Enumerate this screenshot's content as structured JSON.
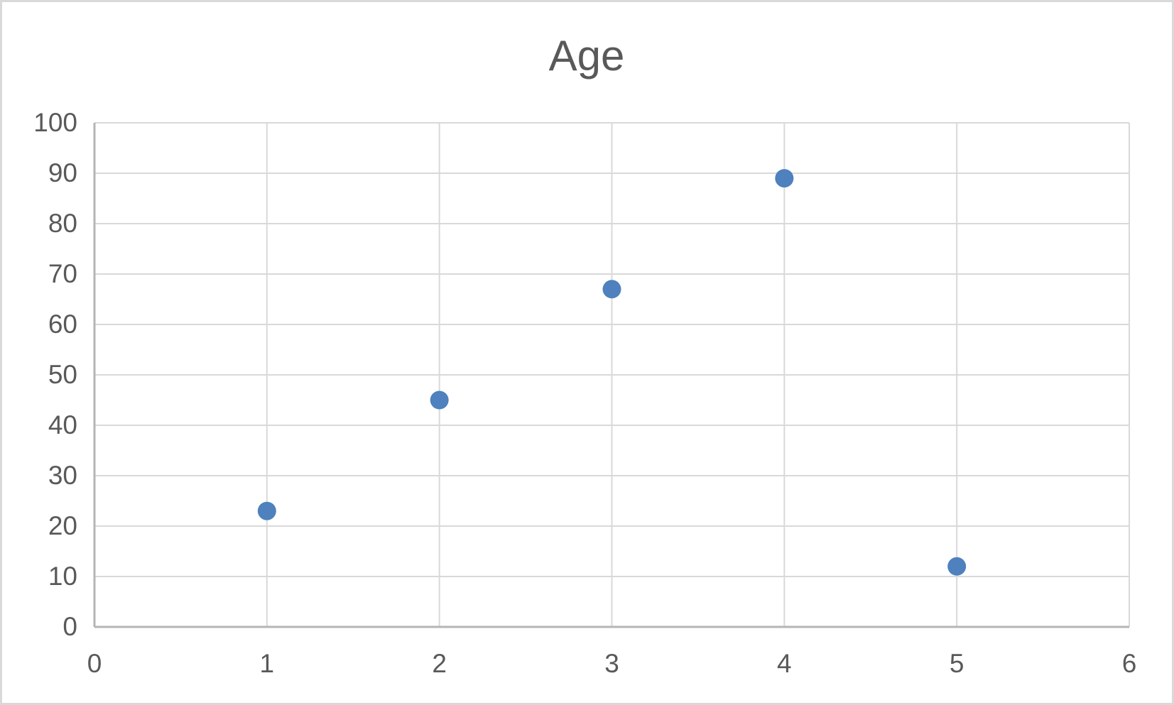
{
  "frame": {
    "background_color": "#FFFFFF",
    "border_color": "#D9D9D9"
  },
  "chart_data": {
    "type": "scatter",
    "title": "Age",
    "xlabel": "",
    "ylabel": "",
    "x": [
      1,
      2,
      3,
      4,
      5
    ],
    "y": [
      23,
      45,
      67,
      89,
      12
    ],
    "points": [
      {
        "x": 1,
        "y": 23
      },
      {
        "x": 2,
        "y": 45
      },
      {
        "x": 3,
        "y": 67
      },
      {
        "x": 4,
        "y": 89
      },
      {
        "x": 5,
        "y": 12
      }
    ],
    "xlim": [
      0,
      6
    ],
    "ylim": [
      0,
      100
    ],
    "x_ticks": [
      0,
      1,
      2,
      3,
      4,
      5,
      6
    ],
    "y_ticks": [
      0,
      10,
      20,
      30,
      40,
      50,
      60,
      70,
      80,
      90,
      100
    ],
    "grid": true,
    "legend_position": "none",
    "colors": {
      "marker": "#4E81BD",
      "gridline": "#D9D9D9",
      "axis_line": "#B5B5B5",
      "text": "#595959",
      "title_text": "#595959"
    }
  }
}
